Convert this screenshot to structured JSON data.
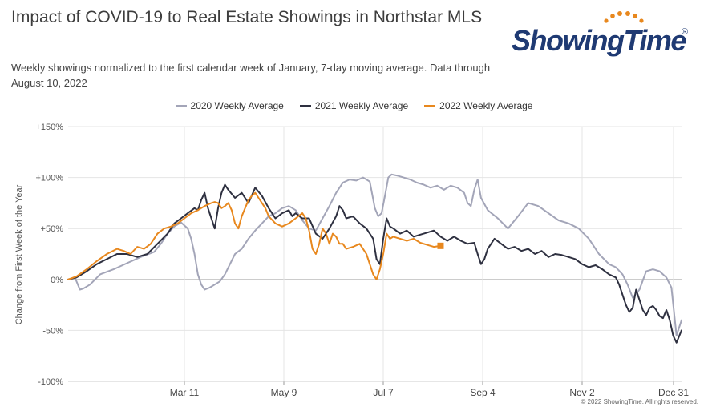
{
  "chart_data": {
    "type": "line",
    "title": "Impact of COVID-19 to Real Estate Showings in Northstar MLS",
    "subtitle": "Weekly showings normalized to the first calendar week of January, 7-day moving average. Data through August 10, 2022",
    "xlabel": "",
    "ylabel": "Change from First Week of the Year",
    "x_tick_labels": [
      "Mar 11",
      "May 9",
      "Jul 7",
      "Sep 4",
      "Nov 2",
      "Dec 31"
    ],
    "x_tick_days": [
      70,
      129,
      188,
      247,
      306,
      365
    ],
    "xlim": [
      1,
      365
    ],
    "y_tick_labels": [
      "+150%",
      "+100%",
      "+50%",
      "0%",
      "-50%",
      "-100%"
    ],
    "y_tick_values": [
      150,
      100,
      50,
      0,
      -50,
      -100
    ],
    "ylim": [
      -100,
      150
    ],
    "grid": true,
    "legend_position": "top-center",
    "series": [
      {
        "name": "2020 Weekly Average",
        "color": "#a3a5b8",
        "x": [
          1,
          5,
          8,
          10,
          14,
          20,
          28,
          36,
          44,
          52,
          56,
          60,
          64,
          68,
          72,
          74,
          76,
          78,
          80,
          82,
          85,
          88,
          91,
          94,
          97,
          100,
          104,
          108,
          112,
          116,
          120,
          124,
          128,
          132,
          136,
          140,
          144,
          148,
          152,
          156,
          160,
          164,
          168,
          172,
          176,
          180,
          183,
          185,
          187,
          189,
          191,
          193,
          196,
          200,
          204,
          208,
          212,
          216,
          220,
          224,
          228,
          232,
          236,
          238,
          240,
          242,
          244,
          246,
          250,
          256,
          262,
          268,
          274,
          280,
          286,
          292,
          298,
          304,
          310,
          316,
          322,
          326,
          330,
          333,
          336,
          340,
          344,
          348,
          352,
          356,
          359,
          362,
          365
        ],
        "y": [
          0,
          2,
          -10,
          -9,
          -5,
          5,
          10,
          16,
          22,
          27,
          35,
          45,
          52,
          56,
          50,
          40,
          25,
          5,
          -5,
          -10,
          -8,
          -5,
          -2,
          5,
          15,
          25,
          30,
          40,
          48,
          55,
          62,
          65,
          70,
          72,
          68,
          58,
          50,
          48,
          60,
          72,
          85,
          95,
          98,
          97,
          100,
          96,
          70,
          62,
          65,
          82,
          100,
          103,
          102,
          100,
          98,
          95,
          93,
          90,
          92,
          88,
          92,
          90,
          85,
          75,
          72,
          88,
          98,
          80,
          68,
          60,
          50,
          62,
          75,
          72,
          65,
          58,
          55,
          50,
          40,
          25,
          15,
          12,
          5,
          -5,
          -18,
          -10,
          8,
          10,
          8,
          2,
          -8,
          -55,
          -40
        ]
      },
      {
        "name": "2021 Weekly Average",
        "color": "#2e3040",
        "x": [
          1,
          6,
          12,
          18,
          24,
          30,
          36,
          42,
          48,
          54,
          60,
          64,
          68,
          72,
          76,
          78,
          80,
          82,
          84,
          86,
          88,
          90,
          92,
          94,
          96,
          100,
          104,
          108,
          112,
          116,
          120,
          124,
          128,
          132,
          134,
          136,
          140,
          144,
          148,
          152,
          156,
          160,
          162,
          164,
          166,
          170,
          174,
          178,
          180,
          182,
          184,
          186,
          188,
          190,
          192,
          194,
          198,
          202,
          206,
          210,
          214,
          218,
          222,
          226,
          230,
          234,
          238,
          242,
          244,
          246,
          248,
          250,
          254,
          258,
          262,
          266,
          270,
          274,
          278,
          282,
          286,
          290,
          294,
          298,
          302,
          306,
          310,
          314,
          318,
          322,
          326,
          328,
          330,
          332,
          334,
          336,
          338,
          340,
          342,
          344,
          346,
          348,
          350,
          352,
          354,
          356,
          358,
          360,
          362,
          365
        ],
        "y": [
          0,
          2,
          8,
          15,
          20,
          25,
          25,
          22,
          25,
          35,
          45,
          55,
          60,
          65,
          70,
          68,
          78,
          85,
          70,
          60,
          50,
          70,
          85,
          93,
          88,
          80,
          85,
          75,
          90,
          82,
          70,
          60,
          65,
          68,
          62,
          65,
          60,
          60,
          45,
          40,
          50,
          62,
          72,
          68,
          60,
          62,
          55,
          50,
          45,
          40,
          20,
          15,
          40,
          60,
          52,
          50,
          45,
          48,
          42,
          44,
          46,
          48,
          42,
          38,
          42,
          38,
          35,
          36,
          25,
          15,
          20,
          30,
          40,
          35,
          30,
          32,
          28,
          30,
          25,
          28,
          22,
          25,
          24,
          22,
          20,
          15,
          12,
          14,
          10,
          5,
          2,
          -5,
          -15,
          -25,
          -32,
          -28,
          -10,
          -20,
          -30,
          -35,
          -28,
          -26,
          -30,
          -36,
          -38,
          -30,
          -40,
          -55,
          -62,
          -50
        ]
      },
      {
        "name": "2022 Weekly Average",
        "color": "#e8881e",
        "x": [
          1,
          6,
          12,
          18,
          24,
          30,
          34,
          38,
          42,
          46,
          50,
          54,
          58,
          62,
          66,
          70,
          74,
          78,
          82,
          86,
          88,
          90,
          92,
          94,
          96,
          98,
          100,
          102,
          104,
          106,
          108,
          110,
          112,
          114,
          116,
          118,
          120,
          124,
          128,
          132,
          136,
          140,
          142,
          144,
          146,
          148,
          150,
          152,
          154,
          156,
          158,
          160,
          162,
          164,
          166,
          170,
          174,
          178,
          180,
          182,
          184,
          186,
          188,
          190,
          192,
          194,
          198,
          202,
          206,
          210,
          214,
          218,
          222
        ],
        "y": [
          0,
          3,
          10,
          18,
          25,
          30,
          28,
          25,
          32,
          30,
          35,
          45,
          50,
          52,
          55,
          60,
          65,
          68,
          72,
          75,
          76,
          75,
          70,
          72,
          75,
          68,
          55,
          50,
          62,
          70,
          78,
          82,
          85,
          80,
          75,
          70,
          62,
          55,
          52,
          55,
          60,
          65,
          60,
          48,
          30,
          25,
          35,
          50,
          45,
          35,
          45,
          42,
          35,
          35,
          30,
          32,
          35,
          25,
          15,
          5,
          0,
          10,
          25,
          45,
          40,
          42,
          40,
          38,
          40,
          36,
          34,
          32,
          33
        ]
      }
    ]
  },
  "logo": {
    "text": "ShowingTime",
    "reg": "®"
  },
  "copyright": "© 2022 ShowingTime. All rights reserved."
}
